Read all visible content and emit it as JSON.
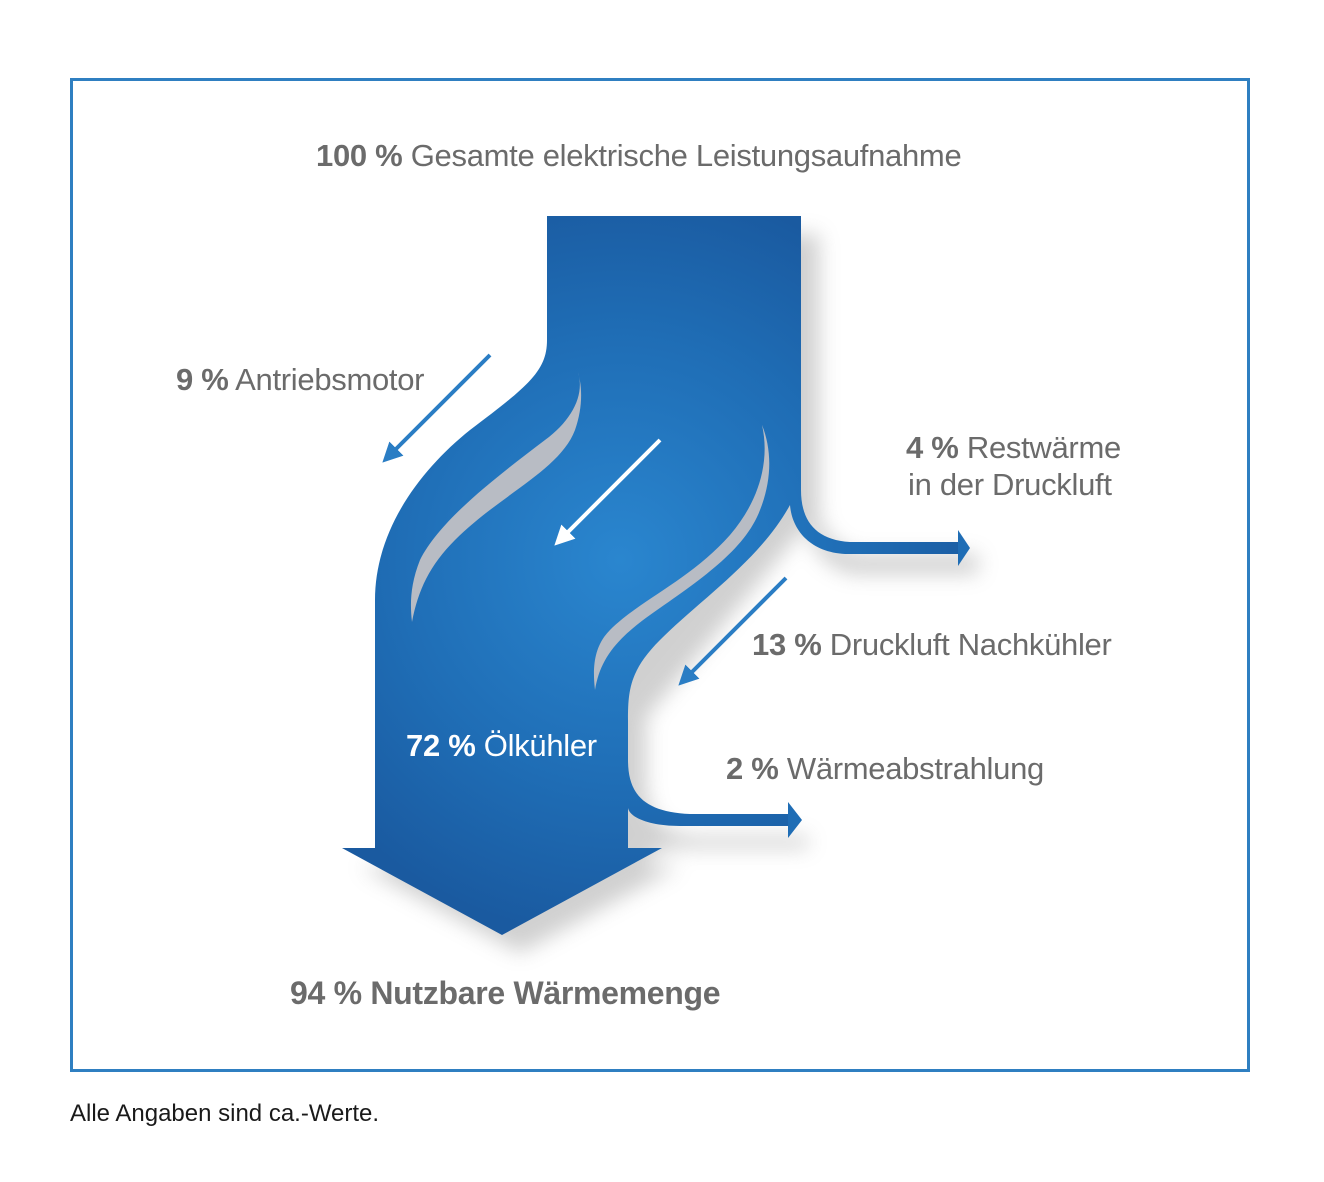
{
  "colors": {
    "frame": "#2f7fc1",
    "flow_dark": "#1a5aa0",
    "flow_light": "#2a86cf",
    "text_gray": "#6b6b6b"
  },
  "labels": {
    "total": {
      "pct": "100 %",
      "text": "Gesamte elektrische Leistungsaufnahme"
    },
    "motor": {
      "pct": "9 %",
      "text": "Antriebsmotor"
    },
    "rest": {
      "pct": "4 %",
      "text": "Restwärme",
      "text2": "in der Druckluft"
    },
    "nachkuehler": {
      "pct": "13 %",
      "text": "Druckluft Nachkühler"
    },
    "oelkuehler": {
      "pct": "72 %",
      "text": "Ölkühler"
    },
    "abstrahlung": {
      "pct": "2 %",
      "text": "Wärmeabstrahlung"
    },
    "nutzbar": {
      "pct": "94 %",
      "text": "Nutzbare Wärmemenge"
    }
  },
  "footnote": "Alle Angaben sind ca.-Werte."
}
